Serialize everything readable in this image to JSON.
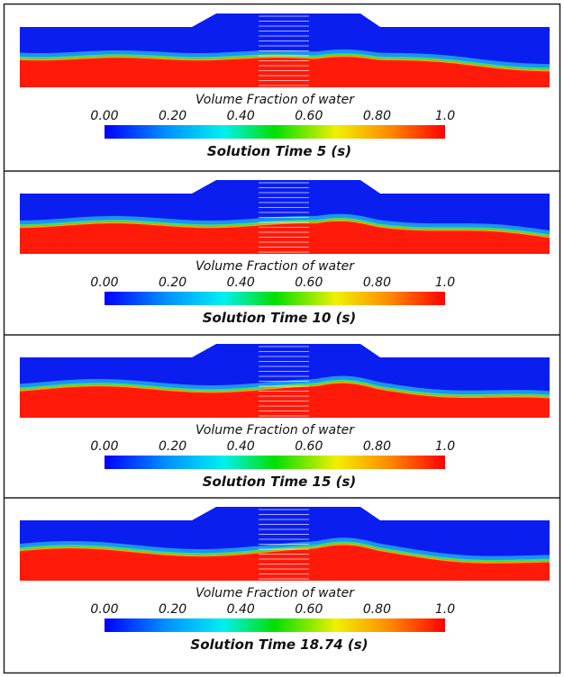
{
  "panels": [
    {
      "title": "Volume Fraction of water",
      "ticks": [
        "0.00",
        "0.20",
        "0.40",
        "0.60",
        "0.80",
        "1.0"
      ],
      "time": "Solution Time 5 (s)"
    },
    {
      "title": "Volume Fraction of water",
      "ticks": [
        "0.00",
        "0.20",
        "0.40",
        "0.60",
        "0.80",
        "1.0"
      ],
      "time": "Solution Time 10 (s)"
    },
    {
      "title": "Volume Fraction of water",
      "ticks": [
        "0.00",
        "0.20",
        "0.40",
        "0.60",
        "0.80",
        "1.0"
      ],
      "time": "Solution Time 15 (s)"
    },
    {
      "title": "Volume Fraction of water",
      "ticks": [
        "0.00",
        "0.20",
        "0.40",
        "0.60",
        "0.80",
        "1.0"
      ],
      "time": "Solution Time 18.74 (s)"
    }
  ]
}
